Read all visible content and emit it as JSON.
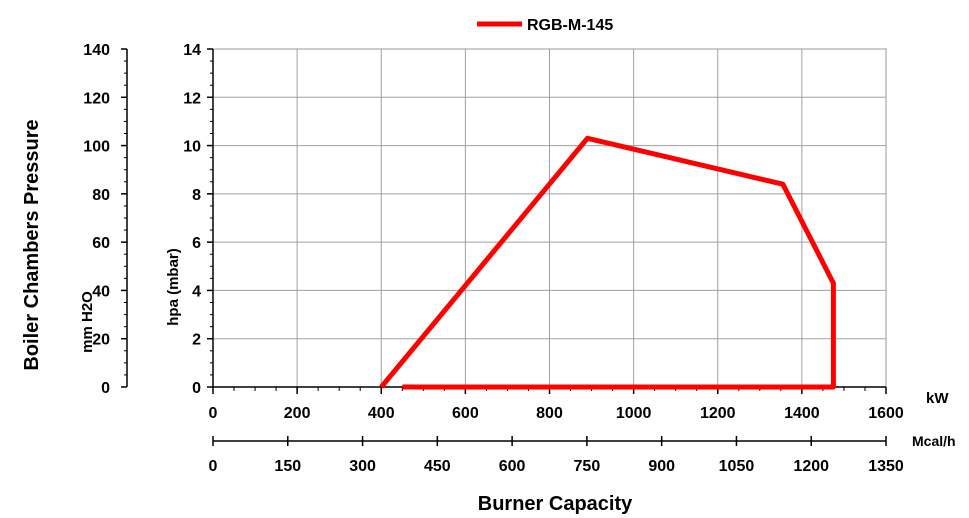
{
  "chart_data": {
    "type": "line",
    "legend": {
      "position": "top-center",
      "entries": [
        {
          "name": "RGB-M-145",
          "color": "#ff0000"
        }
      ]
    },
    "series": [
      {
        "name": "RGB-M-145",
        "color": "#ff0000",
        "x": [
          450,
          1475,
          1475,
          1355,
          890,
          400
        ],
        "y": [
          0,
          0,
          4.3,
          8.4,
          10.3,
          0
        ]
      }
    ],
    "grid": true,
    "x_axis_kw": {
      "unit": "kW",
      "range": [
        0,
        1600
      ],
      "ticks": [
        "0",
        "200",
        "400",
        "600",
        "800",
        "1000",
        "1200",
        "1400",
        "1600"
      ]
    },
    "x_axis_mcal": {
      "unit": "Mcal/h",
      "range": [
        0,
        1350
      ],
      "ticks": [
        "0",
        "150",
        "300",
        "450",
        "600",
        "750",
        "900",
        "1050",
        "1200",
        "1350"
      ]
    },
    "y_axis_hpa": {
      "label": "hpa (mbar)",
      "range": [
        0,
        14
      ],
      "ticks": [
        "0",
        "2",
        "4",
        "6",
        "8",
        "10",
        "12",
        "14"
      ]
    },
    "y_axis_mmh2o": {
      "label": "mm H2O",
      "range": [
        0,
        140
      ],
      "ticks": [
        "0",
        "20",
        "40",
        "60",
        "80",
        "100",
        "120",
        "140"
      ]
    },
    "ylabel": "Boiler Chambers Pressure",
    "xlabel": "Burner Capacity"
  }
}
